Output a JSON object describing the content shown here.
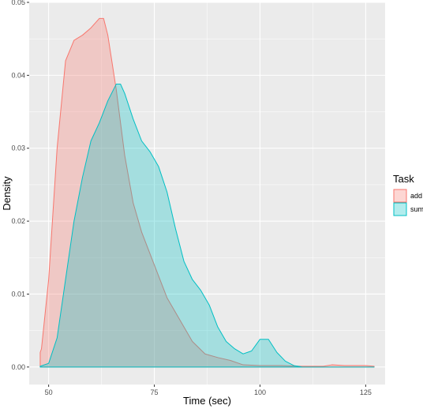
{
  "chart_data": {
    "type": "area",
    "title": "",
    "xlabel": "Time (sec)",
    "ylabel": "Density",
    "xlim": [
      45.4,
      129.6
    ],
    "ylim": [
      -0.0024,
      0.05
    ],
    "x_ticks": [
      50,
      75,
      100,
      125
    ],
    "x_tick_labels": [
      "50",
      "75",
      "100",
      "125"
    ],
    "y_ticks": [
      0,
      0.01,
      0.02,
      0.03,
      0.04,
      0.05
    ],
    "y_tick_labels": [
      "0.00",
      "0.01",
      "0.02",
      "0.03",
      "0.04",
      "0.05"
    ],
    "grid": true,
    "legend": {
      "title": "Task",
      "position": "right",
      "entries": [
        "add",
        "sum"
      ]
    },
    "series": [
      {
        "name": "add",
        "fill": "#f8766d",
        "x": [
          48,
          48.3,
          50,
          52,
          54,
          56,
          58,
          60,
          62,
          63,
          64,
          66,
          68,
          70,
          72,
          75,
          78,
          81,
          84,
          87,
          90,
          93,
          96,
          100,
          105,
          110,
          115,
          117,
          120,
          125,
          127
        ],
        "y": [
          0.002,
          0.0025,
          0.012,
          0.03,
          0.042,
          0.0448,
          0.0455,
          0.0465,
          0.0478,
          0.0478,
          0.0455,
          0.038,
          0.029,
          0.0225,
          0.0185,
          0.014,
          0.0095,
          0.0065,
          0.0035,
          0.0018,
          0.0013,
          0.0009,
          0.0003,
          0.0002,
          0.0002,
          0.0001,
          0.0001,
          0.0003,
          0.0002,
          0.0002,
          0.0001
        ]
      },
      {
        "name": "sum",
        "fill": "#00bfc4",
        "x": [
          48,
          50,
          52,
          54,
          56,
          58,
          60,
          62,
          64,
          66,
          67,
          68,
          70,
          72,
          74,
          76,
          78,
          80,
          82,
          84,
          86,
          88,
          90,
          92,
          94,
          96,
          98,
          100,
          102,
          104,
          106,
          108,
          110,
          115,
          120,
          125,
          127
        ],
        "y": [
          0.0001,
          0.0005,
          0.004,
          0.012,
          0.02,
          0.026,
          0.031,
          0.0335,
          0.0365,
          0.0388,
          0.0388,
          0.0375,
          0.034,
          0.031,
          0.0295,
          0.0275,
          0.024,
          0.019,
          0.0145,
          0.012,
          0.0105,
          0.0085,
          0.0055,
          0.0035,
          0.0025,
          0.0018,
          0.0022,
          0.0038,
          0.0038,
          0.002,
          0.0008,
          0.0002,
          0.0,
          0.0,
          0.0,
          0.0,
          0.0
        ]
      }
    ]
  }
}
